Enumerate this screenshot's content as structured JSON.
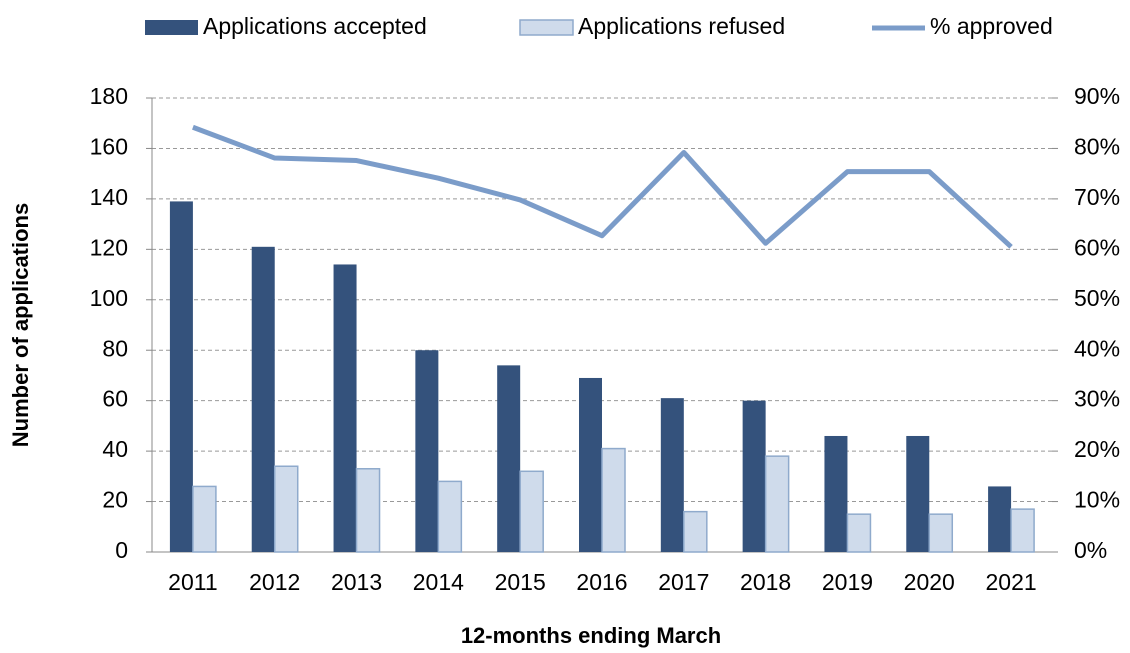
{
  "chart_data": {
    "type": "bar",
    "x_label": "12-months ending March",
    "y_label": "Number of applications",
    "categories": [
      "2011",
      "2012",
      "2013",
      "2014",
      "2015",
      "2016",
      "2017",
      "2018",
      "2019",
      "2020",
      "2021"
    ],
    "series": [
      {
        "name": "Applications accepted",
        "color": "#34527c",
        "values": [
          139,
          121,
          114,
          80,
          74,
          69,
          61,
          60,
          46,
          46,
          26
        ]
      },
      {
        "name": "Applications refused",
        "color": "#cfdbeb",
        "values": [
          26,
          34,
          33,
          28,
          32,
          41,
          16,
          38,
          15,
          15,
          17
        ]
      },
      {
        "name": "% approved",
        "color": "#7b9cc9",
        "axis": "y2",
        "type": "line",
        "values": [
          84.2,
          78.1,
          77.6,
          74.1,
          69.8,
          62.7,
          79.2,
          61.2,
          75.4,
          75.4,
          60.5
        ]
      }
    ],
    "ylim": [
      0,
      180
    ],
    "yticks": [
      0,
      20,
      40,
      60,
      80,
      100,
      120,
      140,
      160,
      180
    ],
    "y2lim": [
      0,
      90
    ],
    "y2ticks": [
      {
        "value": 0,
        "label": "0%"
      },
      {
        "value": 10,
        "label": "10%"
      },
      {
        "value": 20,
        "label": "20%"
      },
      {
        "value": 30,
        "label": "30%"
      },
      {
        "value": 40,
        "label": "40%"
      },
      {
        "value": 50,
        "label": "50%"
      },
      {
        "value": 60,
        "label": "60%"
      },
      {
        "value": 70,
        "label": "70%"
      },
      {
        "value": 80,
        "label": "80%"
      },
      {
        "value": 90,
        "label": "90%"
      }
    ],
    "grid": true,
    "legend": "top"
  }
}
